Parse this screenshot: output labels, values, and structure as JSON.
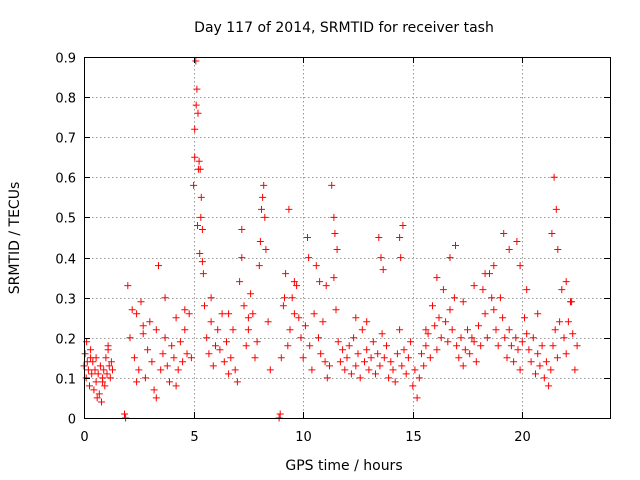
{
  "chart_data": {
    "type": "scatter",
    "title": "Day 117 of 2014, SRMTID for receiver tash",
    "xlabel": "GPS time / hours",
    "ylabel": "SRMTID / TECUs",
    "xlim": [
      0,
      24
    ],
    "ylim": [
      0,
      0.9
    ],
    "xticks": [
      0,
      5,
      10,
      15,
      20
    ],
    "xtick_labels": [
      "0",
      "5",
      "10",
      "15",
      "20"
    ],
    "yticks": [
      0,
      0.1,
      0.2,
      0.3,
      0.4,
      0.5,
      0.6,
      0.7,
      0.8,
      0.9
    ],
    "ytick_labels": [
      "0",
      "0.1",
      "0.2",
      "0.3",
      "0.4",
      "0.5",
      "0.6",
      "0.7",
      "0.8",
      "0.9"
    ],
    "grid": true,
    "marker": "+",
    "marker_color": "#ff0000",
    "series": [
      {
        "name": "SRMTID",
        "x": [
          0.0,
          0.05,
          0.1,
          0.15,
          0.2,
          0.25,
          0.3,
          0.35,
          0.4,
          0.45,
          0.5,
          0.55,
          0.6,
          0.65,
          0.7,
          0.75,
          0.8,
          0.85,
          0.9,
          0.95,
          1.0,
          1.05,
          1.1,
          1.15,
          1.2,
          1.25,
          1.3,
          1.85,
          1.9,
          2.0,
          2.1,
          2.2,
          2.3,
          2.4,
          2.5,
          2.6,
          2.7,
          2.8,
          2.9,
          3.0,
          3.1,
          3.2,
          3.3,
          3.4,
          3.5,
          3.6,
          3.7,
          3.8,
          3.9,
          4.0,
          4.1,
          4.2,
          4.3,
          4.4,
          4.5,
          4.6,
          4.7,
          4.8,
          4.9,
          5.0,
          5.05,
          5.1,
          5.15,
          5.2,
          5.25,
          5.3,
          5.35,
          5.4,
          5.45,
          5.5,
          5.6,
          5.7,
          5.8,
          5.9,
          6.0,
          6.1,
          6.2,
          6.3,
          6.4,
          6.5,
          6.6,
          6.7,
          6.8,
          6.9,
          7.0,
          7.1,
          7.2,
          7.3,
          7.4,
          7.5,
          7.6,
          7.7,
          7.8,
          7.9,
          8.0,
          8.1,
          8.2,
          8.3,
          8.4,
          8.5,
          8.9,
          8.95,
          9.0,
          9.1,
          9.2,
          9.3,
          9.4,
          9.5,
          9.6,
          9.7,
          9.8,
          9.9,
          10.0,
          10.1,
          10.2,
          10.3,
          10.4,
          10.5,
          10.6,
          10.7,
          10.8,
          10.9,
          11.0,
          11.1,
          11.2,
          11.3,
          11.4,
          11.5,
          11.6,
          11.7,
          11.8,
          11.9,
          12.0,
          12.1,
          12.2,
          12.3,
          12.4,
          12.5,
          12.6,
          12.7,
          12.8,
          12.9,
          13.0,
          13.1,
          13.2,
          13.3,
          13.4,
          13.5,
          13.6,
          13.7,
          13.8,
          13.9,
          14.0,
          14.1,
          14.2,
          14.3,
          14.4,
          14.5,
          14.6,
          14.7,
          14.8,
          14.9,
          15.0,
          15.1,
          15.2,
          15.3,
          15.4,
          15.5,
          15.6,
          15.7,
          15.8,
          15.9,
          16.0,
          16.1,
          16.2,
          16.3,
          16.4,
          16.5,
          16.6,
          16.7,
          16.8,
          16.9,
          17.0,
          17.1,
          17.2,
          17.3,
          17.4,
          17.5,
          17.6,
          17.7,
          17.8,
          17.9,
          18.0,
          18.1,
          18.2,
          18.3,
          18.4,
          18.5,
          18.6,
          18.7,
          18.8,
          18.9,
          19.0,
          19.1,
          19.2,
          19.3,
          19.4,
          19.5,
          19.6,
          19.7,
          19.8,
          19.9,
          20.0,
          20.1,
          20.2,
          20.3,
          20.4,
          20.5,
          20.6,
          20.7,
          20.8,
          20.9,
          21.0,
          21.1,
          21.2,
          21.3,
          21.4,
          21.5,
          21.6,
          21.7,
          21.8,
          21.9,
          22.0,
          22.1,
          22.2,
          22.3,
          22.4,
          22.5,
          0.12,
          0.3,
          0.55,
          0.85,
          1.1,
          2.4,
          2.7,
          3.3,
          3.7,
          4.2,
          4.6,
          5.05,
          5.12,
          5.18,
          5.22,
          5.28,
          5.33,
          5.4,
          5.8,
          6.6,
          7.2,
          7.5,
          8.05,
          8.15,
          8.25,
          9.15,
          9.35,
          9.6,
          10.25,
          10.75,
          11.05,
          11.4,
          11.45,
          11.55,
          12.4,
          12.9,
          13.45,
          13.55,
          13.65,
          14.4,
          14.45,
          14.55,
          15.6,
          16.1,
          16.7,
          16.95,
          17.3,
          17.8,
          18.3,
          18.7,
          19.15,
          19.4,
          19.75,
          19.9,
          20.2,
          20.7,
          21.35,
          21.45,
          21.55,
          21.62,
          22.0,
          22.25
        ],
        "y": [
          0.13,
          0.16,
          0.1,
          0.14,
          0.12,
          0.08,
          0.15,
          0.11,
          0.14,
          0.07,
          0.12,
          0.09,
          0.05,
          0.11,
          0.06,
          0.13,
          0.04,
          0.09,
          0.12,
          0.08,
          0.15,
          0.11,
          0.18,
          0.13,
          0.1,
          0.14,
          0.12,
          0.01,
          0.0,
          0.33,
          0.2,
          0.27,
          0.15,
          0.26,
          0.12,
          0.29,
          0.21,
          0.1,
          0.17,
          0.24,
          0.14,
          0.07,
          0.22,
          0.38,
          0.12,
          0.16,
          0.2,
          0.13,
          0.09,
          0.18,
          0.15,
          0.25,
          0.12,
          0.19,
          0.14,
          0.22,
          0.16,
          0.26,
          0.15,
          0.58,
          0.72,
          0.89,
          0.82,
          0.76,
          0.64,
          0.62,
          0.55,
          0.47,
          0.36,
          0.28,
          0.2,
          0.16,
          0.24,
          0.13,
          0.18,
          0.22,
          0.17,
          0.26,
          0.14,
          0.19,
          0.11,
          0.15,
          0.22,
          0.12,
          0.09,
          0.34,
          0.47,
          0.28,
          0.18,
          0.22,
          0.31,
          0.26,
          0.15,
          0.19,
          0.38,
          0.52,
          0.58,
          0.42,
          0.24,
          0.12,
          0.0,
          0.01,
          0.15,
          0.28,
          0.36,
          0.18,
          0.22,
          0.3,
          0.26,
          0.33,
          0.25,
          0.2,
          0.15,
          0.23,
          0.45,
          0.18,
          0.12,
          0.26,
          0.38,
          0.2,
          0.16,
          0.24,
          0.14,
          0.1,
          0.13,
          0.58,
          0.35,
          0.27,
          0.19,
          0.14,
          0.17,
          0.12,
          0.15,
          0.18,
          0.11,
          0.2,
          0.13,
          0.16,
          0.1,
          0.22,
          0.14,
          0.17,
          0.12,
          0.15,
          0.19,
          0.11,
          0.16,
          0.13,
          0.21,
          0.15,
          0.18,
          0.1,
          0.14,
          0.12,
          0.09,
          0.16,
          0.22,
          0.13,
          0.17,
          0.11,
          0.15,
          0.19,
          0.08,
          0.12,
          0.05,
          0.1,
          0.16,
          0.13,
          0.18,
          0.21,
          0.15,
          0.28,
          0.23,
          0.17,
          0.25,
          0.2,
          0.32,
          0.24,
          0.19,
          0.27,
          0.22,
          0.3,
          0.18,
          0.15,
          0.2,
          0.13,
          0.17,
          0.22,
          0.16,
          0.2,
          0.19,
          0.14,
          0.23,
          0.18,
          0.32,
          0.26,
          0.2,
          0.36,
          0.3,
          0.27,
          0.22,
          0.18,
          0.3,
          0.25,
          0.2,
          0.15,
          0.22,
          0.18,
          0.14,
          0.2,
          0.17,
          0.12,
          0.19,
          0.25,
          0.21,
          0.17,
          0.14,
          0.2,
          0.11,
          0.16,
          0.13,
          0.18,
          0.1,
          0.14,
          0.08,
          0.12,
          0.18,
          0.22,
          0.15,
          0.24,
          0.32,
          0.2,
          0.16,
          0.24,
          0.29,
          0.21,
          0.12,
          0.18,
          0.19,
          0.17,
          0.15,
          0.1,
          0.17,
          0.09,
          0.23,
          0.05,
          0.3,
          0.08,
          0.27,
          0.65,
          0.78,
          0.48,
          0.62,
          0.41,
          0.5,
          0.39,
          0.3,
          0.26,
          0.4,
          0.25,
          0.44,
          0.55,
          0.5,
          0.3,
          0.52,
          0.34,
          0.4,
          0.34,
          0.33,
          0.5,
          0.46,
          0.42,
          0.25,
          0.24,
          0.45,
          0.4,
          0.37,
          0.45,
          0.4,
          0.48,
          0.22,
          0.35,
          0.4,
          0.43,
          0.29,
          0.33,
          0.36,
          0.38,
          0.46,
          0.42,
          0.44,
          0.38,
          0.32,
          0.26,
          0.46,
          0.6,
          0.52,
          0.42,
          0.34,
          0.29
        ]
      }
    ]
  }
}
